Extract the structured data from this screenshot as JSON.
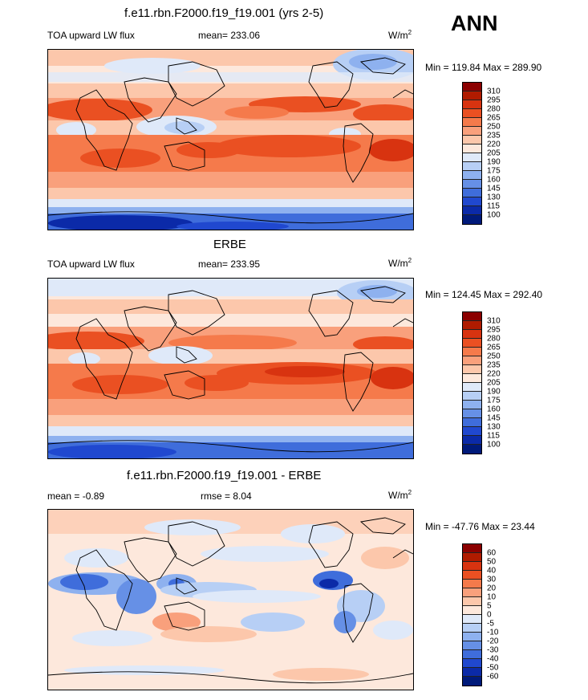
{
  "season": "ANN",
  "panels": [
    {
      "title": "f.e11.rbn.F2000.f19_f19.001 (yrs 2-5)",
      "left_label": "TOA upward LW flux",
      "center_label": "mean= 233.06",
      "units": "W/m",
      "units_sup": "2",
      "minmax": "Min = 119.84 Max = 289.90",
      "colorbar": {
        "labels": [
          "310",
          "295",
          "280",
          "265",
          "250",
          "235",
          "220",
          "205",
          "190",
          "175",
          "160",
          "145",
          "130",
          "115",
          "100"
        ],
        "colors": [
          "#8b0000",
          "#b01b00",
          "#d83310",
          "#ea5022",
          "#f57a4b",
          "#f9a07c",
          "#fcc7ab",
          "#fde8dc",
          "#dfe9f9",
          "#b7cff5",
          "#8eb1ef",
          "#6690e6",
          "#3f6ddb",
          "#2048cf",
          "#0b2aa8",
          "#001a7a"
        ]
      }
    },
    {
      "title": "ERBE",
      "left_label": "TOA upward LW flux",
      "center_label": "mean= 233.95",
      "units": "W/m",
      "units_sup": "2",
      "minmax": "Min = 124.45 Max = 292.40",
      "colorbar": {
        "labels": [
          "310",
          "295",
          "280",
          "265",
          "250",
          "235",
          "220",
          "205",
          "190",
          "175",
          "160",
          "145",
          "130",
          "115",
          "100"
        ],
        "colors": [
          "#8b0000",
          "#b01b00",
          "#d83310",
          "#ea5022",
          "#f57a4b",
          "#f9a07c",
          "#fcc7ab",
          "#fde8dc",
          "#dfe9f9",
          "#b7cff5",
          "#8eb1ef",
          "#6690e6",
          "#3f6ddb",
          "#2048cf",
          "#0b2aa8",
          "#001a7a"
        ]
      }
    },
    {
      "title": "f.e11.rbn.F2000.f19_f19.001 - ERBE",
      "left_label": "mean =  -0.89",
      "center_label": "rmse =   8.04",
      "units": "W/m",
      "units_sup": "2",
      "minmax": "Min = -47.76 Max =  23.44",
      "colorbar": {
        "labels": [
          "60",
          "50",
          "40",
          "30",
          "20",
          "10",
          "5",
          "0",
          "-5",
          "-10",
          "-20",
          "-30",
          "-40",
          "-50",
          "-60"
        ],
        "colors": [
          "#8b0000",
          "#b01b00",
          "#d83310",
          "#ea5022",
          "#f57a4b",
          "#f9a07c",
          "#fcc7ab",
          "#fde8dc",
          "#dfe9f9",
          "#b7cff5",
          "#8eb1ef",
          "#6690e6",
          "#3f6ddb",
          "#2048cf",
          "#0b2aa8",
          "#001a7a"
        ]
      }
    }
  ]
}
